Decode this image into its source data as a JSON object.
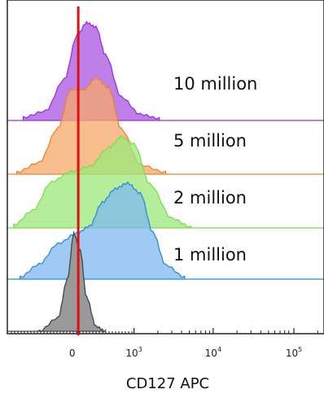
{
  "chart_data": {
    "type": "area",
    "xlabel": "CD127 APC",
    "x_ticks": [
      {
        "base": "0",
        "exp": ""
      },
      {
        "base": "10",
        "exp": "3"
      },
      {
        "base": "10",
        "exp": "4"
      },
      {
        "base": "10",
        "exp": "5"
      }
    ],
    "gate_color": "#dd1111",
    "series": [
      {
        "name": "10 million",
        "color_fill": "#a855e0",
        "color_line": "#9b30d9",
        "profile": [
          [
            0.05,
            0.03
          ],
          [
            0.12,
            0.12
          ],
          [
            0.18,
            0.45
          ],
          [
            0.22,
            0.85
          ],
          [
            0.25,
            1.0
          ],
          [
            0.28,
            0.93
          ],
          [
            0.31,
            0.7
          ],
          [
            0.36,
            0.25
          ],
          [
            0.42,
            0.06
          ],
          [
            0.48,
            0.02
          ]
        ]
      },
      {
        "name": "5 million",
        "color_fill": "#f5a868",
        "color_line": "#e9832e",
        "profile": [
          [
            0.03,
            0.02
          ],
          [
            0.1,
            0.15
          ],
          [
            0.16,
            0.5
          ],
          [
            0.2,
            0.85
          ],
          [
            0.24,
            0.9
          ],
          [
            0.28,
            1.0
          ],
          [
            0.32,
            0.88
          ],
          [
            0.36,
            0.5
          ],
          [
            0.42,
            0.12
          ],
          [
            0.5,
            0.02
          ]
        ]
      },
      {
        "name": "2 million",
        "color_fill": "#9be87a",
        "color_line": "#7ddc4f",
        "profile": [
          [
            0.02,
            0.03
          ],
          [
            0.08,
            0.2
          ],
          [
            0.14,
            0.5
          ],
          [
            0.2,
            0.6
          ],
          [
            0.26,
            0.65
          ],
          [
            0.32,
            0.85
          ],
          [
            0.36,
            1.0
          ],
          [
            0.4,
            0.92
          ],
          [
            0.45,
            0.45
          ],
          [
            0.52,
            0.08
          ],
          [
            0.58,
            0.01
          ]
        ]
      },
      {
        "name": "1 million",
        "color_fill": "#7db8f0",
        "color_line": "#2b8ad6",
        "profile": [
          [
            0.04,
            0.02
          ],
          [
            0.1,
            0.15
          ],
          [
            0.16,
            0.38
          ],
          [
            0.22,
            0.5
          ],
          [
            0.26,
            0.55
          ],
          [
            0.3,
            0.78
          ],
          [
            0.34,
            0.97
          ],
          [
            0.38,
            1.0
          ],
          [
            0.42,
            0.9
          ],
          [
            0.46,
            0.5
          ],
          [
            0.5,
            0.12
          ],
          [
            0.56,
            0.02
          ]
        ]
      },
      {
        "name": "",
        "color_fill": "#999999",
        "color_line": "#444444",
        "profile": [
          [
            0.1,
            0.0
          ],
          [
            0.16,
            0.12
          ],
          [
            0.19,
            0.55
          ],
          [
            0.21,
            1.0
          ],
          [
            0.23,
            0.8
          ],
          [
            0.25,
            0.35
          ],
          [
            0.28,
            0.05
          ],
          [
            0.31,
            0.0
          ]
        ]
      }
    ]
  }
}
